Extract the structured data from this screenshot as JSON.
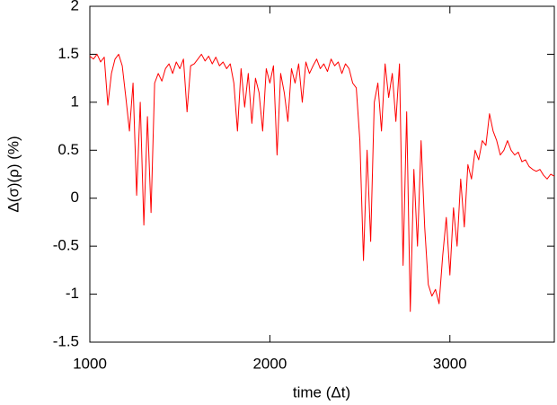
{
  "chart_data": {
    "type": "line",
    "x_label": "time (Δt)",
    "y_label": "Δ(σ)(ρ) (%)",
    "xlim": [
      1000,
      3580
    ],
    "ylim": [
      -1.5,
      2
    ],
    "xticks": [
      1000,
      2000,
      3000
    ],
    "yticks": [
      -1.5,
      -1,
      -0.5,
      0,
      0.5,
      1,
      1.5,
      2
    ],
    "grid": false,
    "series": [
      {
        "color": "#ff0000",
        "x": [
          1000,
          1020,
          1040,
          1060,
          1080,
          1100,
          1120,
          1140,
          1160,
          1180,
          1200,
          1220,
          1240,
          1260,
          1280,
          1300,
          1320,
          1340,
          1360,
          1380,
          1400,
          1420,
          1440,
          1460,
          1480,
          1500,
          1520,
          1540,
          1560,
          1580,
          1600,
          1620,
          1640,
          1660,
          1680,
          1700,
          1720,
          1740,
          1760,
          1780,
          1800,
          1820,
          1840,
          1860,
          1880,
          1900,
          1920,
          1940,
          1960,
          1980,
          2000,
          2020,
          2040,
          2060,
          2080,
          2100,
          2120,
          2140,
          2160,
          2180,
          2200,
          2220,
          2240,
          2260,
          2280,
          2300,
          2320,
          2340,
          2360,
          2380,
          2400,
          2420,
          2440,
          2460,
          2480,
          2500,
          2520,
          2540,
          2560,
          2580,
          2600,
          2620,
          2640,
          2660,
          2680,
          2700,
          2720,
          2740,
          2760,
          2780,
          2800,
          2820,
          2840,
          2860,
          2880,
          2900,
          2920,
          2940,
          2960,
          2980,
          3000,
          3020,
          3040,
          3060,
          3080,
          3100,
          3120,
          3140,
          3160,
          3180,
          3200,
          3220,
          3240,
          3260,
          3280,
          3300,
          3320,
          3340,
          3360,
          3380,
          3400,
          3420,
          3440,
          3460,
          3480,
          3500,
          3520,
          3540,
          3560,
          3580
        ],
        "values": [
          1.48,
          1.45,
          1.5,
          1.42,
          1.47,
          0.97,
          1.3,
          1.45,
          1.5,
          1.38,
          1.05,
          0.7,
          1.2,
          0.03,
          1.0,
          -0.28,
          0.85,
          -0.15,
          1.2,
          1.3,
          1.22,
          1.35,
          1.4,
          1.3,
          1.42,
          1.35,
          1.45,
          0.9,
          1.38,
          1.4,
          1.45,
          1.5,
          1.43,
          1.48,
          1.4,
          1.47,
          1.38,
          1.42,
          1.35,
          1.4,
          1.2,
          0.7,
          1.35,
          0.95,
          1.3,
          0.78,
          1.25,
          1.1,
          0.7,
          1.35,
          1.2,
          1.38,
          0.45,
          1.3,
          1.1,
          0.8,
          1.35,
          1.2,
          1.4,
          1.0,
          1.42,
          1.3,
          1.38,
          1.45,
          1.35,
          1.4,
          1.32,
          1.45,
          1.38,
          1.42,
          1.3,
          1.4,
          1.35,
          1.2,
          1.15,
          0.6,
          -0.65,
          0.5,
          -0.45,
          1.0,
          1.2,
          0.7,
          1.4,
          1.05,
          1.3,
          0.8,
          1.4,
          -0.7,
          0.9,
          -1.18,
          0.3,
          -0.5,
          0.6,
          -0.3,
          -0.9,
          -1.02,
          -0.95,
          -1.1,
          -0.6,
          -0.2,
          -0.8,
          -0.1,
          -0.5,
          0.2,
          -0.3,
          0.35,
          0.2,
          0.5,
          0.4,
          0.6,
          0.55,
          0.88,
          0.7,
          0.6,
          0.45,
          0.5,
          0.6,
          0.5,
          0.45,
          0.48,
          0.38,
          0.4,
          0.33,
          0.3,
          0.28,
          0.3,
          0.24,
          0.2,
          0.25,
          0.23
        ]
      }
    ]
  }
}
